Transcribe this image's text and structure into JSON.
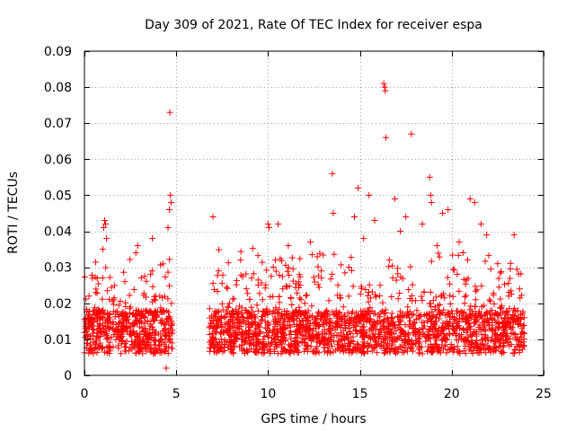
{
  "chart_data": {
    "type": "scatter",
    "title": "Day 309 of 2021, Rate Of TEC Index for receiver espa",
    "xlabel": "GPS time / hours",
    "ylabel": "ROTI / TECUs",
    "xlim": [
      0,
      25
    ],
    "ylim": [
      0,
      0.09
    ],
    "x_ticks": [
      0,
      5,
      10,
      15,
      20,
      25
    ],
    "x_tick_labels": [
      "0",
      "5",
      "10",
      "15",
      "20",
      "25"
    ],
    "y_ticks": [
      0,
      0.01,
      0.02,
      0.03,
      0.04,
      0.05,
      0.06,
      0.07,
      0.08,
      0.09
    ],
    "y_tick_labels": [
      "0",
      "0.01",
      "0.02",
      "0.03",
      "0.04",
      "0.05",
      "0.06",
      "0.07",
      "0.08",
      "0.09"
    ],
    "grid": true,
    "marker": "+",
    "color": "#ff0000",
    "data_gap_hours": [
      4.8,
      6.8
    ],
    "series": [
      {
        "name": "ROTI",
        "x": [
          0.05,
          0.25,
          0.45,
          0.65,
          0.85,
          1.0,
          1.05,
          1.1,
          1.15,
          1.2,
          1.35,
          1.6,
          1.9,
          2.2,
          2.5,
          2.8,
          2.9,
          3.0,
          3.3,
          3.6,
          3.7,
          3.9,
          4.1,
          4.3,
          4.45,
          4.55,
          4.62,
          4.65,
          4.68,
          4.72,
          4.75,
          7.0,
          7.1,
          7.3,
          7.6,
          7.9,
          8.2,
          8.5,
          8.8,
          9.1,
          9.4,
          9.7,
          10.0,
          10.05,
          10.3,
          10.55,
          10.8,
          11.1,
          11.4,
          11.7,
          12.0,
          12.3,
          12.6,
          12.9,
          13.2,
          13.5,
          13.55,
          13.8,
          14.1,
          14.4,
          14.7,
          14.9,
          15.0,
          15.2,
          15.5,
          15.8,
          16.1,
          16.3,
          16.35,
          16.38,
          16.42,
          16.6,
          16.9,
          17.2,
          17.5,
          17.8,
          18.1,
          18.4,
          18.8,
          18.85,
          18.9,
          19.2,
          19.5,
          19.8,
          20.1,
          20.4,
          20.7,
          21.0,
          21.25,
          21.3,
          21.6,
          21.9,
          22.2,
          22.5,
          22.8,
          23.1,
          23.4,
          23.7,
          23.95
        ],
        "y": [
          0.013,
          0.022,
          0.011,
          0.018,
          0.014,
          0.035,
          0.041,
          0.043,
          0.042,
          0.038,
          0.016,
          0.021,
          0.012,
          0.026,
          0.019,
          0.034,
          0.036,
          0.015,
          0.013,
          0.028,
          0.038,
          0.012,
          0.022,
          0.018,
          0.002,
          0.041,
          0.046,
          0.073,
          0.05,
          0.048,
          0.014,
          0.044,
          0.012,
          0.029,
          0.016,
          0.02,
          0.011,
          0.032,
          0.018,
          0.027,
          0.013,
          0.021,
          0.042,
          0.041,
          0.015,
          0.042,
          0.024,
          0.036,
          0.017,
          0.028,
          0.02,
          0.037,
          0.013,
          0.029,
          0.018,
          0.056,
          0.045,
          0.025,
          0.019,
          0.03,
          0.044,
          0.052,
          0.015,
          0.038,
          0.05,
          0.043,
          0.025,
          0.081,
          0.08,
          0.079,
          0.066,
          0.032,
          0.049,
          0.04,
          0.044,
          0.067,
          0.018,
          0.042,
          0.055,
          0.05,
          0.048,
          0.036,
          0.045,
          0.046,
          0.013,
          0.037,
          0.02,
          0.049,
          0.048,
          0.021,
          0.042,
          0.039,
          0.018,
          0.031,
          0.013,
          0.022,
          0.039,
          0.024,
          0.016
        ]
      }
    ]
  }
}
